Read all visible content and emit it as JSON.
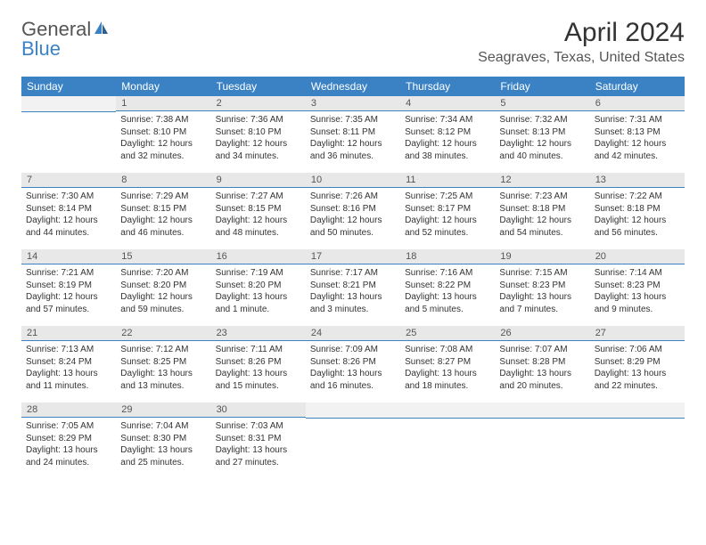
{
  "logo": {
    "text_general": "General",
    "text_blue": "Blue",
    "icon_color": "#3b82c4"
  },
  "header": {
    "month_title": "April 2024",
    "location": "Seagraves, Texas, United States"
  },
  "colors": {
    "header_bg": "#3b82c4",
    "day_number_bg": "#e8e8e8",
    "text": "#333333",
    "divider": "#3b82c4"
  },
  "typography": {
    "month_title_size": 30,
    "location_size": 16,
    "weekday_size": 12,
    "daynum_size": 11,
    "body_size": 10
  },
  "weekdays": [
    "Sunday",
    "Monday",
    "Tuesday",
    "Wednesday",
    "Thursday",
    "Friday",
    "Saturday"
  ],
  "layout": {
    "first_day_column": 1,
    "days_in_month": 30,
    "rows": 5,
    "cols": 7
  },
  "days": [
    {
      "n": "1",
      "sunrise": "Sunrise: 7:38 AM",
      "sunset": "Sunset: 8:10 PM",
      "daylight1": "Daylight: 12 hours",
      "daylight2": "and 32 minutes."
    },
    {
      "n": "2",
      "sunrise": "Sunrise: 7:36 AM",
      "sunset": "Sunset: 8:10 PM",
      "daylight1": "Daylight: 12 hours",
      "daylight2": "and 34 minutes."
    },
    {
      "n": "3",
      "sunrise": "Sunrise: 7:35 AM",
      "sunset": "Sunset: 8:11 PM",
      "daylight1": "Daylight: 12 hours",
      "daylight2": "and 36 minutes."
    },
    {
      "n": "4",
      "sunrise": "Sunrise: 7:34 AM",
      "sunset": "Sunset: 8:12 PM",
      "daylight1": "Daylight: 12 hours",
      "daylight2": "and 38 minutes."
    },
    {
      "n": "5",
      "sunrise": "Sunrise: 7:32 AM",
      "sunset": "Sunset: 8:13 PM",
      "daylight1": "Daylight: 12 hours",
      "daylight2": "and 40 minutes."
    },
    {
      "n": "6",
      "sunrise": "Sunrise: 7:31 AM",
      "sunset": "Sunset: 8:13 PM",
      "daylight1": "Daylight: 12 hours",
      "daylight2": "and 42 minutes."
    },
    {
      "n": "7",
      "sunrise": "Sunrise: 7:30 AM",
      "sunset": "Sunset: 8:14 PM",
      "daylight1": "Daylight: 12 hours",
      "daylight2": "and 44 minutes."
    },
    {
      "n": "8",
      "sunrise": "Sunrise: 7:29 AM",
      "sunset": "Sunset: 8:15 PM",
      "daylight1": "Daylight: 12 hours",
      "daylight2": "and 46 minutes."
    },
    {
      "n": "9",
      "sunrise": "Sunrise: 7:27 AM",
      "sunset": "Sunset: 8:15 PM",
      "daylight1": "Daylight: 12 hours",
      "daylight2": "and 48 minutes."
    },
    {
      "n": "10",
      "sunrise": "Sunrise: 7:26 AM",
      "sunset": "Sunset: 8:16 PM",
      "daylight1": "Daylight: 12 hours",
      "daylight2": "and 50 minutes."
    },
    {
      "n": "11",
      "sunrise": "Sunrise: 7:25 AM",
      "sunset": "Sunset: 8:17 PM",
      "daylight1": "Daylight: 12 hours",
      "daylight2": "and 52 minutes."
    },
    {
      "n": "12",
      "sunrise": "Sunrise: 7:23 AM",
      "sunset": "Sunset: 8:18 PM",
      "daylight1": "Daylight: 12 hours",
      "daylight2": "and 54 minutes."
    },
    {
      "n": "13",
      "sunrise": "Sunrise: 7:22 AM",
      "sunset": "Sunset: 8:18 PM",
      "daylight1": "Daylight: 12 hours",
      "daylight2": "and 56 minutes."
    },
    {
      "n": "14",
      "sunrise": "Sunrise: 7:21 AM",
      "sunset": "Sunset: 8:19 PM",
      "daylight1": "Daylight: 12 hours",
      "daylight2": "and 57 minutes."
    },
    {
      "n": "15",
      "sunrise": "Sunrise: 7:20 AM",
      "sunset": "Sunset: 8:20 PM",
      "daylight1": "Daylight: 12 hours",
      "daylight2": "and 59 minutes."
    },
    {
      "n": "16",
      "sunrise": "Sunrise: 7:19 AM",
      "sunset": "Sunset: 8:20 PM",
      "daylight1": "Daylight: 13 hours",
      "daylight2": "and 1 minute."
    },
    {
      "n": "17",
      "sunrise": "Sunrise: 7:17 AM",
      "sunset": "Sunset: 8:21 PM",
      "daylight1": "Daylight: 13 hours",
      "daylight2": "and 3 minutes."
    },
    {
      "n": "18",
      "sunrise": "Sunrise: 7:16 AM",
      "sunset": "Sunset: 8:22 PM",
      "daylight1": "Daylight: 13 hours",
      "daylight2": "and 5 minutes."
    },
    {
      "n": "19",
      "sunrise": "Sunrise: 7:15 AM",
      "sunset": "Sunset: 8:23 PM",
      "daylight1": "Daylight: 13 hours",
      "daylight2": "and 7 minutes."
    },
    {
      "n": "20",
      "sunrise": "Sunrise: 7:14 AM",
      "sunset": "Sunset: 8:23 PM",
      "daylight1": "Daylight: 13 hours",
      "daylight2": "and 9 minutes."
    },
    {
      "n": "21",
      "sunrise": "Sunrise: 7:13 AM",
      "sunset": "Sunset: 8:24 PM",
      "daylight1": "Daylight: 13 hours",
      "daylight2": "and 11 minutes."
    },
    {
      "n": "22",
      "sunrise": "Sunrise: 7:12 AM",
      "sunset": "Sunset: 8:25 PM",
      "daylight1": "Daylight: 13 hours",
      "daylight2": "and 13 minutes."
    },
    {
      "n": "23",
      "sunrise": "Sunrise: 7:11 AM",
      "sunset": "Sunset: 8:26 PM",
      "daylight1": "Daylight: 13 hours",
      "daylight2": "and 15 minutes."
    },
    {
      "n": "24",
      "sunrise": "Sunrise: 7:09 AM",
      "sunset": "Sunset: 8:26 PM",
      "daylight1": "Daylight: 13 hours",
      "daylight2": "and 16 minutes."
    },
    {
      "n": "25",
      "sunrise": "Sunrise: 7:08 AM",
      "sunset": "Sunset: 8:27 PM",
      "daylight1": "Daylight: 13 hours",
      "daylight2": "and 18 minutes."
    },
    {
      "n": "26",
      "sunrise": "Sunrise: 7:07 AM",
      "sunset": "Sunset: 8:28 PM",
      "daylight1": "Daylight: 13 hours",
      "daylight2": "and 20 minutes."
    },
    {
      "n": "27",
      "sunrise": "Sunrise: 7:06 AM",
      "sunset": "Sunset: 8:29 PM",
      "daylight1": "Daylight: 13 hours",
      "daylight2": "and 22 minutes."
    },
    {
      "n": "28",
      "sunrise": "Sunrise: 7:05 AM",
      "sunset": "Sunset: 8:29 PM",
      "daylight1": "Daylight: 13 hours",
      "daylight2": "and 24 minutes."
    },
    {
      "n": "29",
      "sunrise": "Sunrise: 7:04 AM",
      "sunset": "Sunset: 8:30 PM",
      "daylight1": "Daylight: 13 hours",
      "daylight2": "and 25 minutes."
    },
    {
      "n": "30",
      "sunrise": "Sunrise: 7:03 AM",
      "sunset": "Sunset: 8:31 PM",
      "daylight1": "Daylight: 13 hours",
      "daylight2": "and 27 minutes."
    }
  ]
}
